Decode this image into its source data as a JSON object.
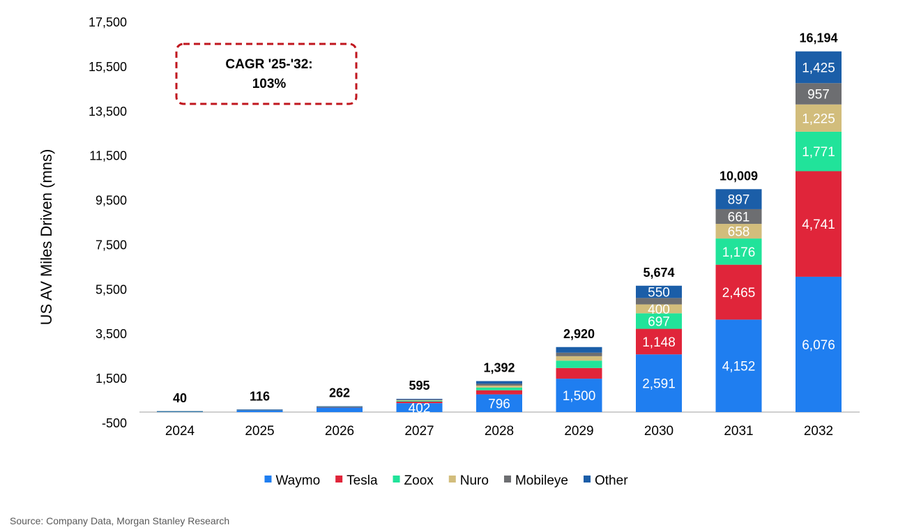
{
  "chart_data": {
    "type": "bar",
    "stacked": true,
    "title": "",
    "xlabel": "",
    "ylabel": "US AV Miles Driven (mns)",
    "ylim": [
      -500,
      17500
    ],
    "yticks": [
      -500,
      1500,
      3500,
      5500,
      7500,
      9500,
      11500,
      13500,
      15500,
      17500
    ],
    "ytick_labels": [
      "-500",
      "1,500",
      "3,500",
      "5,500",
      "7,500",
      "9,500",
      "11,500",
      "13,500",
      "15,500",
      "17,500"
    ],
    "categories": [
      "2024",
      "2025",
      "2026",
      "2027",
      "2028",
      "2029",
      "2030",
      "2031",
      "2032"
    ],
    "series": [
      {
        "name": "Waymo",
        "color": "#1f7ef0",
        "values": [
          35,
          95,
          210,
          402,
          796,
          1500,
          2591,
          4152,
          6076
        ],
        "labels": [
          "",
          "",
          "",
          "402",
          "796",
          "1,500",
          "2,591",
          "4,152",
          "6,076"
        ]
      },
      {
        "name": "Tesla",
        "color": "#e0253a",
        "values": [
          0,
          8,
          20,
          70,
          185,
          480,
          1148,
          2465,
          4741
        ],
        "labels": [
          "",
          "",
          "",
          "",
          "",
          "",
          "1,148",
          "2,465",
          "4,741"
        ]
      },
      {
        "name": "Zoox",
        "color": "#21e39a",
        "values": [
          2,
          5,
          12,
          40,
          120,
          330,
          697,
          1176,
          1771
        ],
        "labels": [
          "",
          "",
          "",
          "",
          "",
          "",
          "697",
          "1,176",
          "1,771"
        ]
      },
      {
        "name": "Nuro",
        "color": "#d2bd7c",
        "values": [
          1,
          3,
          8,
          28,
          90,
          200,
          400,
          658,
          1225
        ],
        "labels": [
          "",
          "",
          "",
          "",
          "",
          "",
          "400",
          "658",
          "1,225"
        ]
      },
      {
        "name": "Mobileye",
        "color": "#6d6e71",
        "values": [
          1,
          2,
          6,
          25,
          80,
          160,
          288,
          661,
          957
        ],
        "labels": [
          "",
          "",
          "",
          "",
          "",
          "",
          "",
          "661",
          "957"
        ]
      },
      {
        "name": "Other",
        "color": "#1b5ea8",
        "values": [
          1,
          3,
          6,
          30,
          121,
          250,
          550,
          897,
          1425
        ],
        "labels": [
          "",
          "",
          "",
          "",
          "",
          "",
          "550",
          "897",
          "1,425"
        ]
      }
    ],
    "totals": [
      "40",
      "116",
      "262",
      "595",
      "1,392",
      "2,920",
      "5,674",
      "10,009",
      "16,194"
    ],
    "totals_values": [
      40,
      116,
      262,
      595,
      1392,
      2920,
      5674,
      10009,
      16194
    ],
    "legend_position": "bottom-center",
    "grid": false,
    "annotation": {
      "line1": "CAGR '25-'32:",
      "line2": "103%",
      "border_color": "#c0161e"
    }
  },
  "source": "Source: Company Data, Morgan Stanley Research"
}
